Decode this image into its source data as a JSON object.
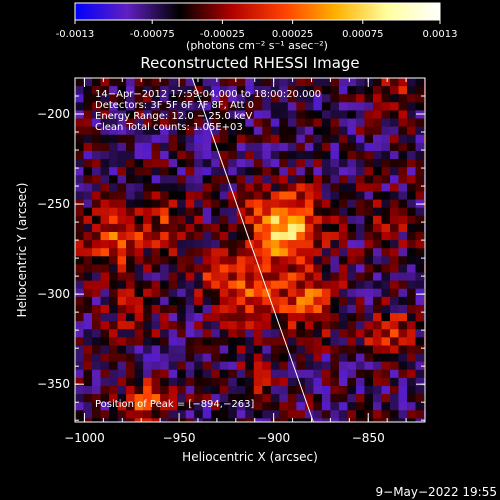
{
  "chart_data": {
    "type": "heatmap",
    "title": "Reconstructed RHESSI Image",
    "colorbar": {
      "ticks": [
        "-0.0013",
        "-0.00075",
        "-0.00025",
        "0.00025",
        "0.00075",
        "0.0013"
      ],
      "tick_values": [
        -0.0013,
        -0.00075,
        -0.00025,
        0.00025,
        0.00075,
        0.0013
      ],
      "range": [
        -0.0013,
        0.0013
      ],
      "unit_label": "(photons cm⁻² s⁻¹ asec⁻²)",
      "colors": [
        "#0000ff",
        "#6020c0",
        "#000000",
        "#b00000",
        "#ff4000",
        "#ffb000",
        "#ffffa0",
        "#ffffff"
      ]
    },
    "xlabel": "Heliocentric X (arcsec)",
    "ylabel": "Heliocentric Y (arcsec)",
    "xlim": [
      -1005,
      -820
    ],
    "ylim": [
      -371,
      -180
    ],
    "xticks": [
      {
        "value": -1000,
        "label": "−1000"
      },
      {
        "value": -950,
        "label": "−950"
      },
      {
        "value": -900,
        "label": "−900"
      },
      {
        "value": -850,
        "label": "−850"
      }
    ],
    "yticks": [
      {
        "value": -200,
        "label": "−200"
      },
      {
        "value": -250,
        "label": "−250"
      },
      {
        "value": -300,
        "label": "−300"
      },
      {
        "value": -350,
        "label": "−350"
      }
    ],
    "info_lines": [
      "14−Apr−2012 17:59:04.000 to 18:00:20.000",
      "Detectors: 3F 5F 6F 7F 8F, Att 0",
      "Energy Range: 12.0 − 25.0 keV",
      "Clean    Total counts: 1.05E+03"
    ],
    "peak_label": "Position of Peak = [−894,−263]",
    "peak": [
      -894,
      -263
    ],
    "limb_line": [
      [
        -943,
        -180
      ],
      [
        -879,
        -371
      ]
    ],
    "sources": [
      {
        "x": -894,
        "y": -263,
        "amp": 0.0013,
        "sigma": 14
      },
      {
        "x": -910,
        "y": -300,
        "amp": 0.0007,
        "sigma": 12
      },
      {
        "x": -880,
        "y": -305,
        "amp": 0.00075,
        "sigma": 11
      },
      {
        "x": -985,
        "y": -270,
        "amp": 0.0008,
        "sigma": 11
      },
      {
        "x": -955,
        "y": -262,
        "amp": 0.0006,
        "sigma": 10
      },
      {
        "x": -930,
        "y": -290,
        "amp": 0.0005,
        "sigma": 9
      },
      {
        "x": -975,
        "y": -310,
        "amp": 0.0004,
        "sigma": 10
      },
      {
        "x": -968,
        "y": -360,
        "amp": 0.0008,
        "sigma": 8
      },
      {
        "x": -838,
        "y": -322,
        "amp": 0.0007,
        "sigma": 9
      },
      {
        "x": -840,
        "y": -260,
        "amp": 0.00035,
        "sigma": 9
      },
      {
        "x": -835,
        "y": -190,
        "amp": 0.0004,
        "sigma": 8
      },
      {
        "x": -910,
        "y": -350,
        "amp": 0.0003,
        "sigma": 10
      }
    ],
    "timestamp": "9−May−2022 19:55"
  }
}
